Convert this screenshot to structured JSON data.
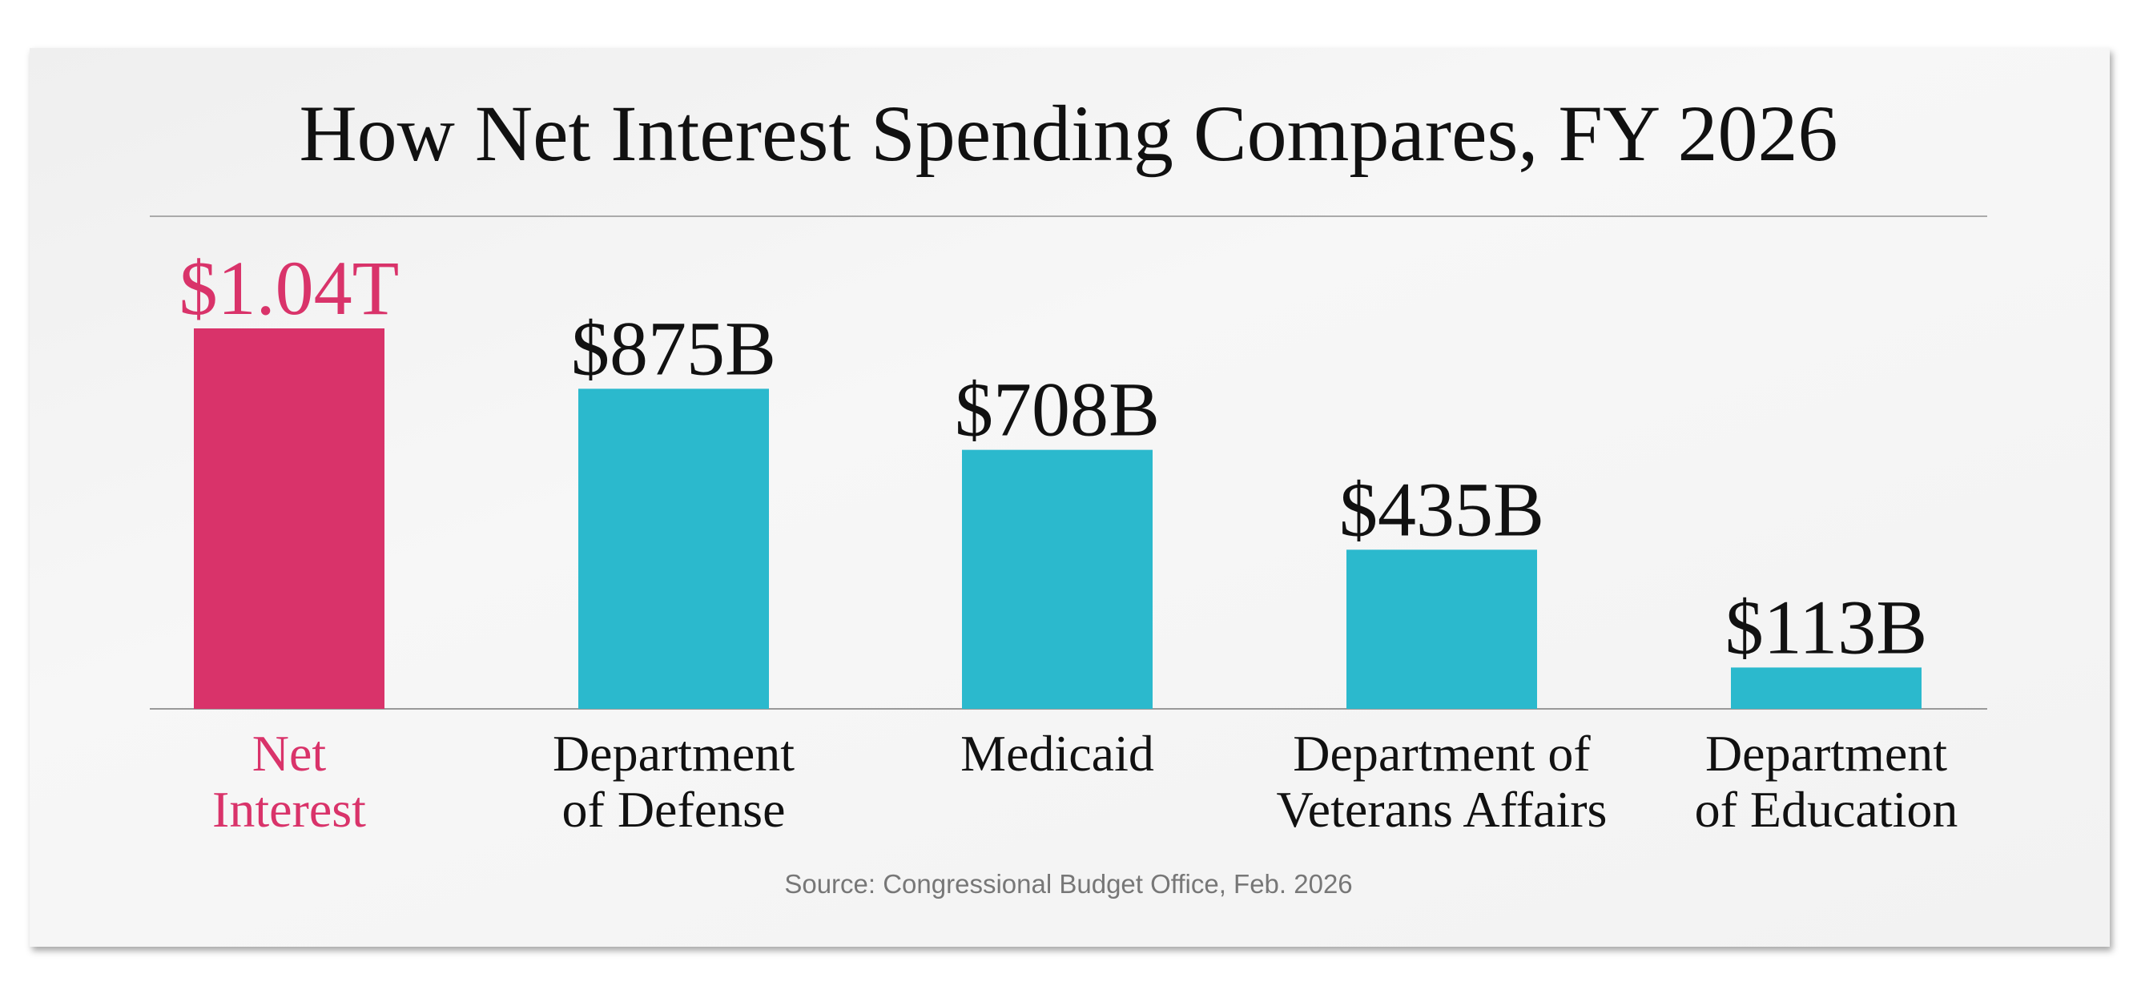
{
  "chart_data": {
    "type": "bar",
    "title": "How Net Interest Spending Compares, FY 2026",
    "categories": [
      "Net\nInterest",
      "Department\nof Defense",
      "Medicaid",
      "Department of\nVeterans Affairs",
      "Department\nof Education"
    ],
    "values": [
      1040,
      875,
      708,
      435,
      113
    ],
    "value_labels": [
      "$1.04T",
      "$875B",
      "$708B",
      "$435B",
      "$113B"
    ],
    "colors": [
      "#d9336a",
      "#2bb9cd",
      "#2bb9cd",
      "#2bb9cd",
      "#2bb9cd"
    ],
    "highlight": "Net\nInterest",
    "source": "Source: Congressional Budget Office, Feb. 2026"
  }
}
